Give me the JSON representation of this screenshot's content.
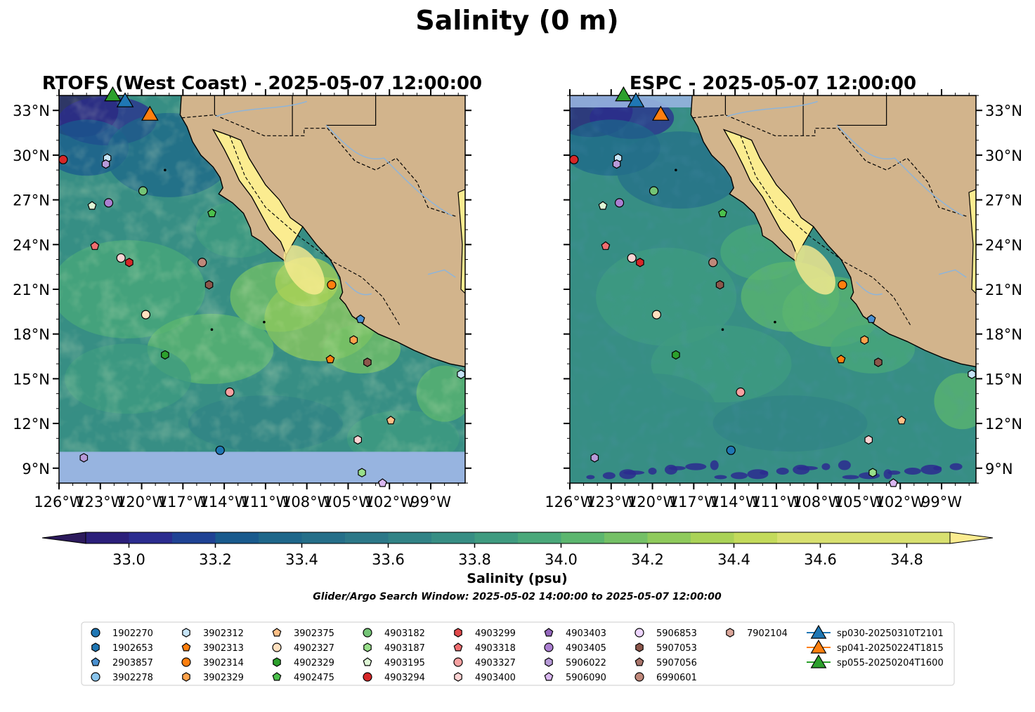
{
  "suptitle": "Salinity (0 m)",
  "panels": [
    {
      "title": "RTOFS (West Coast) - 2025-05-07 12:00:00",
      "ytick_side": "left"
    },
    {
      "title": "ESPC - 2025-05-07 12:00:00",
      "ytick_side": "right"
    }
  ],
  "colorbar": {
    "label": "Salinity (psu)",
    "tick_labels": [
      "33.0",
      "33.2",
      "33.4",
      "33.6",
      "33.8",
      "34.0",
      "34.2",
      "34.4",
      "34.6",
      "34.8"
    ]
  },
  "search_window": "Glider/Argo Search Window: 2025-05-02 14:00:00 to 2025-05-07 12:00:00",
  "colors": {
    "land": "#d2b48c",
    "baja_ocean_fill": "#fbec90",
    "nodata": "#97b4e0",
    "river": "#8fb4d8"
  },
  "chart_data": {
    "type": "map",
    "variable": "sea surface salinity",
    "units": "psu",
    "depth": "0 m",
    "lon_range": [
      -126,
      -96.5
    ],
    "lat_range": [
      8,
      34
    ],
    "xtick_labels": [
      "126°W",
      "123°W",
      "120°W",
      "117°W",
      "114°W",
      "111°W",
      "108°W",
      "105°W",
      "102°W",
      "99°W"
    ],
    "xtick_values": [
      -126,
      -123,
      -120,
      -117,
      -114,
      -111,
      -108,
      -105,
      -102,
      -99
    ],
    "ytick_labels": [
      "9°N",
      "12°N",
      "15°N",
      "18°N",
      "21°N",
      "24°N",
      "27°N",
      "30°N",
      "33°N"
    ],
    "ytick_values": [
      9,
      12,
      15,
      18,
      21,
      24,
      27,
      30,
      33
    ],
    "colorbar_range": [
      32.9,
      34.9
    ],
    "colormap_levels": [
      "#2c1a5c",
      "#2b1f7a",
      "#2b2c8f",
      "#1f4294",
      "#195a8d",
      "#1e678a",
      "#256f89",
      "#2c7888",
      "#318386",
      "#378e84",
      "#3f9b80",
      "#4aa87a",
      "#5cb66f",
      "#74c066",
      "#8fca5c",
      "#aad257",
      "#c3da5b",
      "#d8e070"
    ],
    "markers": [
      {
        "id": "1902270",
        "shape": "circle",
        "color": "#1f77b4"
      },
      {
        "id": "1902653",
        "shape": "hexagon",
        "color": "#1f77b4"
      },
      {
        "id": "2903857",
        "shape": "pentagon",
        "color": "#4a90d0",
        "lon": -104.1,
        "lat": 19.0
      },
      {
        "id": "3902278",
        "shape": "circle",
        "color": "#89c4ec"
      },
      {
        "id": "3902312",
        "shape": "hexagon",
        "color": "#c6e4f7",
        "lon": -122.5,
        "lat": 29.8
      },
      {
        "id": "3902313",
        "shape": "pentagon",
        "color": "#ff7f0e",
        "lon": -106.3,
        "lat": 16.3
      },
      {
        "id": "3902314",
        "shape": "circle",
        "color": "#ff7f0e",
        "lon": -106.2,
        "lat": 21.3
      },
      {
        "id": "3902329",
        "shape": "hexagon",
        "color": "#ffa24b",
        "lon": -104.6,
        "lat": 17.6
      },
      {
        "id": "3902375",
        "shape": "pentagon",
        "color": "#ffbf86",
        "lon": -101.9,
        "lat": 12.2
      },
      {
        "id": "4902327",
        "shape": "circle",
        "color": "#ffe0bf",
        "lon": -119.7,
        "lat": 19.3
      },
      {
        "id": "4902329",
        "shape": "hexagon",
        "color": "#2ca02c",
        "lon": -118.3,
        "lat": 16.6
      },
      {
        "id": "4902475",
        "shape": "pentagon",
        "color": "#4cc04c",
        "lon": -114.9,
        "lat": 26.1
      },
      {
        "id": "4903182",
        "shape": "circle",
        "color": "#74c476",
        "lon": -119.9,
        "lat": 27.6
      },
      {
        "id": "4903187",
        "shape": "hexagon",
        "color": "#98df8a",
        "lon": -104.0,
        "lat": 8.7
      },
      {
        "id": "4903195",
        "shape": "pentagon",
        "color": "#dff7d6",
        "lon": -123.6,
        "lat": 26.6
      },
      {
        "id": "4903294",
        "shape": "circle",
        "color": "#d62728",
        "lon": -125.7,
        "lat": 29.7
      },
      {
        "id": "4903299",
        "shape": "hexagon",
        "color": "#e0484a"
      },
      {
        "id": "4903318",
        "shape": "pentagon",
        "color": "#f06e70",
        "lon": -123.4,
        "lat": 23.9
      },
      {
        "id": "4903327",
        "shape": "circle",
        "color": "#f7a1a1",
        "lon": -113.6,
        "lat": 14.1
      },
      {
        "id": "4903400",
        "shape": "hexagon",
        "color": "#fcd3d3",
        "lon": -104.3,
        "lat": 10.9
      },
      {
        "id": "4903403",
        "shape": "pentagon",
        "color": "#9467bd"
      },
      {
        "id": "4903405",
        "shape": "circle",
        "color": "#ab7fd1",
        "lon": -122.4,
        "lat": 26.8
      },
      {
        "id": "5906022",
        "shape": "hexagon",
        "color": "#b79ad8",
        "lon": -124.2,
        "lat": 9.7
      },
      {
        "id": "5906090",
        "shape": "pentagon",
        "color": "#d9b7f0",
        "lon": -102.5,
        "lat": 8.0
      },
      {
        "id": "5906853",
        "shape": "circle",
        "color": "#eed6ff"
      },
      {
        "id": "5907053",
        "shape": "hexagon",
        "color": "#8c564b",
        "lon": -103.6,
        "lat": 16.1
      },
      {
        "id": "5907056",
        "shape": "pentagon",
        "color": "#a9746a"
      },
      {
        "id": "6990601",
        "shape": "circle",
        "color": "#c0887a",
        "lon": -115.6,
        "lat": 22.8
      },
      {
        "id": "7902104",
        "shape": "hexagon",
        "color": "#dba69a"
      },
      {
        "id": "sp030-20250310T2101",
        "shape": "triangle",
        "color": "#1f77b4",
        "lon": -121.2,
        "lat": 33.7
      },
      {
        "id": "sp041-20250224T1815",
        "shape": "triangle",
        "color": "#ff7f0e",
        "lon": -119.4,
        "lat": 32.8
      },
      {
        "id": "sp055-20250204T1600",
        "shape": "triangle",
        "color": "#2ca02c",
        "lon": -122.1,
        "lat": 34.1
      }
    ],
    "extra_points": [
      {
        "shape": "circle",
        "color": "#fcd3d3",
        "lon": -121.5,
        "lat": 23.1
      },
      {
        "shape": "hexagon",
        "color": "#d62728",
        "lon": -120.9,
        "lat": 22.8
      },
      {
        "shape": "hexagon",
        "color": "#8c564b",
        "lon": -115.1,
        "lat": 21.3
      },
      {
        "shape": "circle",
        "color": "#1f77b4",
        "lon": -114.3,
        "lat": 10.2
      },
      {
        "shape": "hexagon",
        "color": "#c6e4f7",
        "lon": -96.8,
        "lat": 15.3
      },
      {
        "shape": "hexagon",
        "color": "#b79ad8",
        "lon": -122.6,
        "lat": 29.4
      }
    ]
  }
}
